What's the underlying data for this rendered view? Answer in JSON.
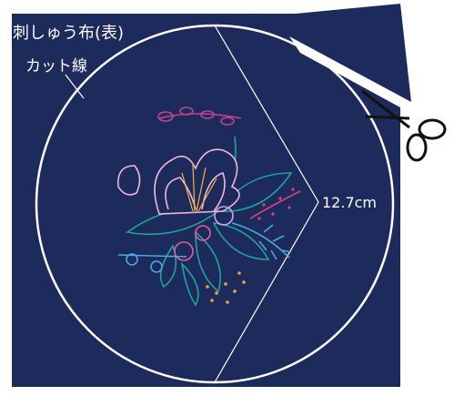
{
  "labels": {
    "fabric": "刺しゅう布(表)",
    "cut_line": "カット線",
    "diameter": "12.7cm"
  }
}
